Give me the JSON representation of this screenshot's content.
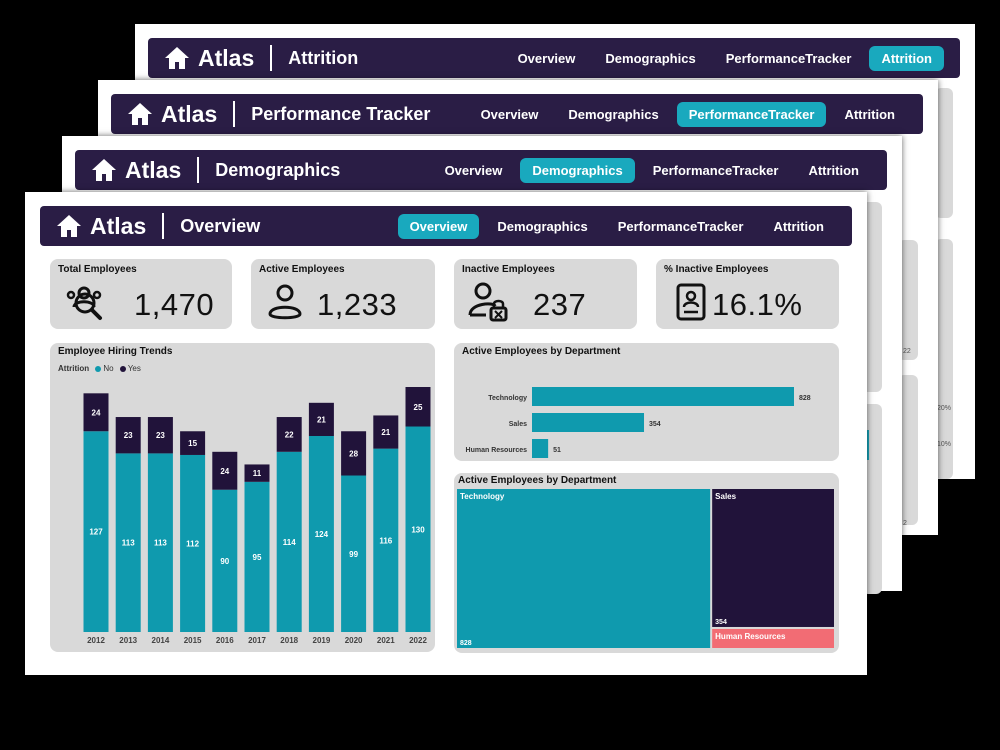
{
  "brand": "Atlas",
  "nav_tabs": [
    "Overview",
    "Demographics",
    "PerformanceTracker",
    "Attrition"
  ],
  "pages": [
    {
      "title": "Attrition",
      "active_tab": 3
    },
    {
      "title": "Performance Tracker",
      "active_tab": 2
    },
    {
      "title": "Demographics",
      "active_tab": 1
    },
    {
      "title": "Overview",
      "active_tab": 0
    }
  ],
  "peek_labels": [
    "22",
    "20%",
    "10%",
    "2"
  ],
  "kpis": [
    {
      "title": "Total Employees",
      "value": "1,470",
      "icon": "people-search-icon"
    },
    {
      "title": "Active Employees",
      "value": "1,233",
      "icon": "person-icon"
    },
    {
      "title": "Inactive Employees",
      "value": "237",
      "icon": "person-lock-icon"
    },
    {
      "title": "% Inactive Employees",
      "value": "16.1%",
      "icon": "id-badge-icon"
    }
  ],
  "colors": {
    "no": "#0f9aae",
    "yes": "#21133a",
    "hr": "#f26c74",
    "nav": "#2a1d45",
    "accent": "#19a9be"
  },
  "hiring": {
    "title": "Employee Hiring Trends",
    "legend_title": "Attrition",
    "legend_no": "No",
    "legend_yes": "Yes"
  },
  "dept_bar": {
    "title": "Active Employees by Department"
  },
  "treemap": {
    "title": "Active Employees by Department"
  },
  "chart_data": [
    {
      "type": "bar",
      "stacked": true,
      "title": "Employee Hiring Trends",
      "categories": [
        "2012",
        "2013",
        "2014",
        "2015",
        "2016",
        "2017",
        "2018",
        "2019",
        "2020",
        "2021",
        "2022"
      ],
      "series": [
        {
          "name": "No",
          "values": [
            127,
            113,
            113,
            112,
            90,
            95,
            114,
            124,
            99,
            116,
            130
          ]
        },
        {
          "name": "Yes",
          "values": [
            24,
            23,
            23,
            15,
            24,
            11,
            22,
            21,
            28,
            21,
            25
          ]
        }
      ],
      "legend_title": "Attrition",
      "grid": false
    },
    {
      "type": "bar",
      "orientation": "horizontal",
      "title": "Active Employees by Department",
      "categories": [
        "Technology",
        "Sales",
        "Human Resources"
      ],
      "values": [
        828,
        354,
        51
      ]
    },
    {
      "type": "treemap",
      "title": "Active Employees by Department",
      "categories": [
        "Technology",
        "Sales",
        "Human Resources"
      ],
      "values": [
        828,
        354,
        51
      ]
    }
  ]
}
